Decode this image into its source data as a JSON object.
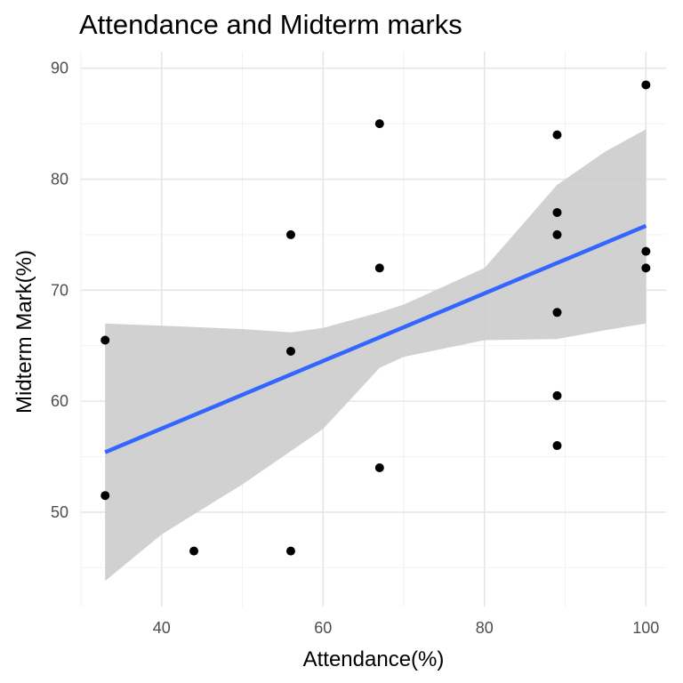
{
  "chart_data": {
    "type": "scatter",
    "title": "Attendance and Midterm marks",
    "xlabel": "Attendance(%)",
    "ylabel": "Midterm Mark(%)",
    "xlim": [
      30,
      102.5
    ],
    "ylim": [
      41.5,
      91.5
    ],
    "x_ticks": [
      40,
      60,
      80,
      100
    ],
    "y_ticks": [
      50,
      60,
      70,
      80,
      90
    ],
    "grid": true,
    "legend": "none",
    "colors": {
      "points": "#000000",
      "trend_line": "#3366ff",
      "confidence_band": "#cccccc",
      "grid": "#e6e6e6"
    },
    "points": [
      {
        "x": 33,
        "y": 65.5
      },
      {
        "x": 33,
        "y": 51.5
      },
      {
        "x": 44,
        "y": 46.5
      },
      {
        "x": 56,
        "y": 75
      },
      {
        "x": 56,
        "y": 64.5
      },
      {
        "x": 56,
        "y": 46.5
      },
      {
        "x": 67,
        "y": 85
      },
      {
        "x": 67,
        "y": 72
      },
      {
        "x": 67,
        "y": 54
      },
      {
        "x": 89,
        "y": 84
      },
      {
        "x": 89,
        "y": 77
      },
      {
        "x": 89,
        "y": 75
      },
      {
        "x": 89,
        "y": 68
      },
      {
        "x": 89,
        "y": 60.5
      },
      {
        "x": 89,
        "y": 56
      },
      {
        "x": 100,
        "y": 88.5
      },
      {
        "x": 100,
        "y": 73.5
      },
      {
        "x": 100,
        "y": 72
      }
    ],
    "trend_line": {
      "method": "linear",
      "x": [
        33,
        100
      ],
      "y": [
        55.4,
        75.8
      ]
    },
    "confidence_band": {
      "x": [
        33,
        40,
        50,
        56,
        60,
        67,
        70,
        80,
        89,
        95,
        100
      ],
      "upper": [
        67.0,
        66.8,
        66.5,
        66.2,
        66.6,
        68.0,
        68.7,
        72.0,
        79.5,
        82.5,
        84.5
      ],
      "lower": [
        43.8,
        48.0,
        52.5,
        55.5,
        57.5,
        63.0,
        64.0,
        65.5,
        65.6,
        66.4,
        67.0
      ]
    }
  }
}
